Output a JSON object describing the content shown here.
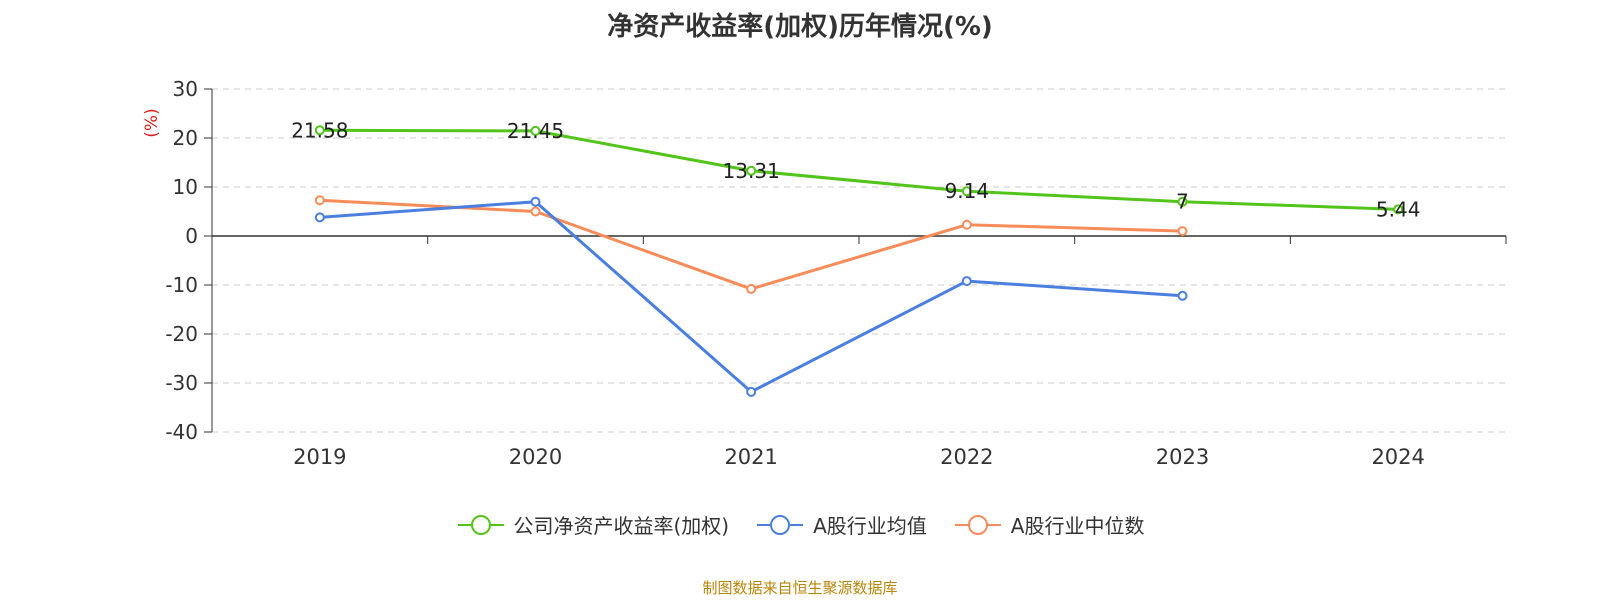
{
  "title": "净资产收益率(加权)历年情况(%)",
  "source": "制图数据来自恒生聚源数据库",
  "chart_data": {
    "type": "line",
    "title": "净资产收益率(加权)历年情况(%)",
    "xlabel": "",
    "ylabel": "(%)",
    "categories": [
      "2019",
      "2020",
      "2021",
      "2022",
      "2023",
      "2024"
    ],
    "ylim": [
      -40,
      30
    ],
    "yticks": [
      30,
      20,
      10,
      0,
      -10,
      -20,
      -30,
      -40
    ],
    "grid": true,
    "legend_position": "bottom",
    "series": [
      {
        "name": "公司净资产收益率(加权)",
        "color": "#52c41a",
        "values": [
          21.58,
          21.45,
          13.31,
          9.14,
          7,
          5.44
        ],
        "labels": [
          "21.58",
          "21.45",
          "13.31",
          "9.14",
          "7",
          "5.44"
        ]
      },
      {
        "name": "A股行业均值",
        "color": "#4a7fe0",
        "values": [
          3.8,
          7.0,
          -31.8,
          -9.2,
          -12.2,
          null
        ]
      },
      {
        "name": "A股行业中位数",
        "color": "#f78c5a",
        "values": [
          7.3,
          5.0,
          -10.8,
          2.3,
          1.0,
          null
        ]
      }
    ]
  }
}
